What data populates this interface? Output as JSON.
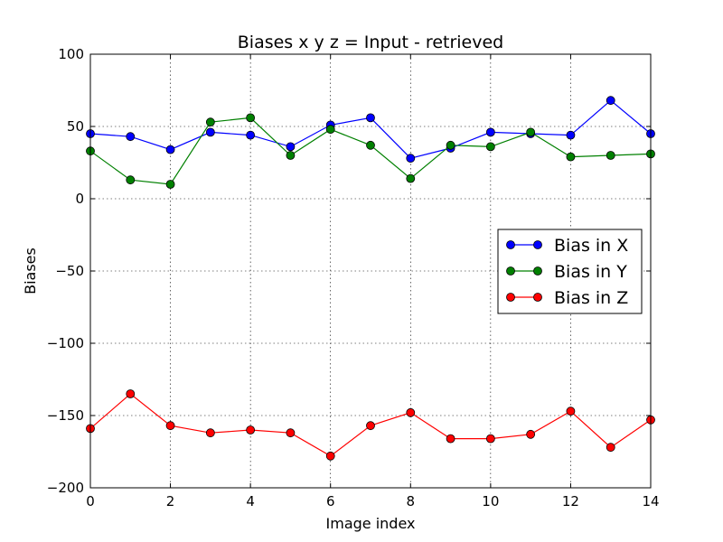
{
  "chart_data": {
    "type": "line",
    "title": "Biases  x y z = Input - retrieved",
    "xlabel": "Image index",
    "ylabel": "Biases",
    "xlim": [
      0,
      14
    ],
    "ylim": [
      -200,
      100
    ],
    "xticks": [
      0,
      2,
      4,
      6,
      8,
      10,
      12,
      14
    ],
    "yticks": [
      -200,
      -150,
      -100,
      -50,
      0,
      50,
      100
    ],
    "ytick_labels": [
      "−200",
      "−150",
      "−100",
      "−50",
      "0",
      "50",
      "100"
    ],
    "grid": true,
    "legend_position": "center-right",
    "x": [
      0,
      1,
      2,
      3,
      4,
      5,
      6,
      7,
      8,
      9,
      10,
      11,
      12,
      13,
      14
    ],
    "series": [
      {
        "name": "Bias in X",
        "color": "#0000ff",
        "values": [
          45,
          43,
          34,
          46,
          44,
          36,
          51,
          56,
          28,
          35,
          46,
          45,
          44,
          68,
          45
        ]
      },
      {
        "name": "Bias in Y",
        "color": "#008000",
        "values": [
          33,
          13,
          10,
          53,
          56,
          30,
          48,
          37,
          14,
          37,
          36,
          46,
          29,
          30,
          31
        ]
      },
      {
        "name": "Bias in Z",
        "color": "#ff0000",
        "values": [
          -159,
          -135,
          -157,
          -162,
          -160,
          -162,
          -178,
          -157,
          -148,
          -166,
          -166,
          -163,
          -147,
          -172,
          -153
        ]
      }
    ]
  }
}
